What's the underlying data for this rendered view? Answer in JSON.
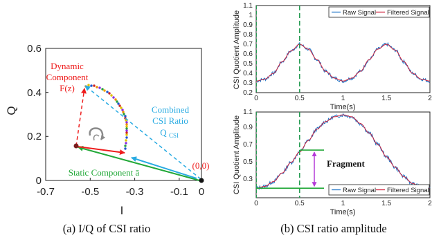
{
  "captions": {
    "left": "(a) I/Q of CSI ratio",
    "right": "(b) CSI ratio amplitude"
  },
  "colors": {
    "dynamic": "#ee1c1c",
    "combined": "#29abe2",
    "static": "#22a838",
    "raw": "#1f77c8",
    "filtered": "#d0203a",
    "dashed_marker": "#2a9d55",
    "fragment": "#b43ad8"
  },
  "chart_data": [
    {
      "type": "scatter",
      "xlabel": "I",
      "ylabel": "Q",
      "xlim": [
        -0.7,
        0.0
      ],
      "ylim": [
        0.0,
        0.6
      ],
      "xticks": [
        "-0.7",
        "-0.5",
        "-0.3",
        "-0.1",
        "0"
      ],
      "yticks": [
        "0",
        "0.2",
        "0.4",
        "0.6"
      ],
      "grid": false,
      "points": {
        "origin": [
          0.0,
          0.0
        ],
        "static_end": [
          -0.575,
          0.155
        ],
        "dynamic_tip": [
          -0.54,
          0.425
        ],
        "arc_end": [
          -0.315,
          0.175
        ]
      },
      "annotations": {
        "dynamic_line1": "Dynamic",
        "dynamic_line2": "Component",
        "dynamic_line3": "F(z)",
        "combined_line1": "Combined",
        "combined_line2": "CSI Ratio",
        "combined_line3_main": "Q",
        "combined_line3_sub": "CSI",
        "static_label": "Static Component ā",
        "origin_label": "(0,0)"
      }
    },
    {
      "type": "line",
      "xlabel": "Time(s)",
      "ylabel": "CSI Quotient Amplitude",
      "xlim": [
        0,
        2
      ],
      "ylim": [
        0.2,
        1.1
      ],
      "xticks": [
        "0",
        "0.5",
        "1",
        "1.5",
        "2"
      ],
      "yticks": [
        "0.2",
        "0.3",
        "0.4",
        "0.5",
        "0.6",
        "0.7",
        "0.8",
        "0.9",
        "1",
        "1.1"
      ],
      "marker_x": 0.5,
      "legend": [
        "Raw Signal",
        "Filtered Signal"
      ],
      "legend_position": "top-right",
      "series": [
        {
          "name": "Filtered Signal",
          "x": [
            0,
            0.1,
            0.2,
            0.3,
            0.4,
            0.5,
            0.6,
            0.7,
            0.8,
            0.9,
            1.0,
            1.1,
            1.2,
            1.3,
            1.4,
            1.5,
            1.6,
            1.7,
            1.8,
            1.9,
            2.0
          ],
          "values": [
            0.32,
            0.34,
            0.4,
            0.52,
            0.63,
            0.7,
            0.65,
            0.54,
            0.42,
            0.35,
            0.32,
            0.35,
            0.42,
            0.54,
            0.65,
            0.7,
            0.64,
            0.52,
            0.4,
            0.34,
            0.32
          ]
        }
      ]
    },
    {
      "type": "line",
      "xlabel": "Time(s)",
      "ylabel": "CSI Quotient Amplitude",
      "xlim": [
        0,
        2
      ],
      "ylim": [
        0.2,
        1.1
      ],
      "xticks": [
        "0",
        "0.5",
        "1",
        "1.5",
        "2"
      ],
      "yticks": [
        "0.3",
        "0.5",
        "0.7",
        "0.9",
        "1.1"
      ],
      "marker_x": 0.5,
      "fragment_label": "Fragment",
      "fragment_range": [
        0.3,
        0.7
      ],
      "legend": [
        "Raw Signal",
        "Filtered Signal"
      ],
      "legend_position": "bottom-right",
      "series": [
        {
          "name": "Filtered Signal",
          "x": [
            0,
            0.1,
            0.2,
            0.3,
            0.4,
            0.5,
            0.6,
            0.7,
            0.8,
            0.9,
            1.0,
            1.1,
            1.2,
            1.3,
            1.4,
            1.5,
            1.6,
            1.7,
            1.8,
            1.9,
            2.0
          ],
          "values": [
            0.3,
            0.32,
            0.37,
            0.46,
            0.57,
            0.68,
            0.8,
            0.92,
            1.0,
            1.05,
            1.07,
            1.05,
            0.98,
            0.88,
            0.76,
            0.63,
            0.52,
            0.42,
            0.35,
            0.31,
            0.3
          ]
        }
      ]
    }
  ]
}
